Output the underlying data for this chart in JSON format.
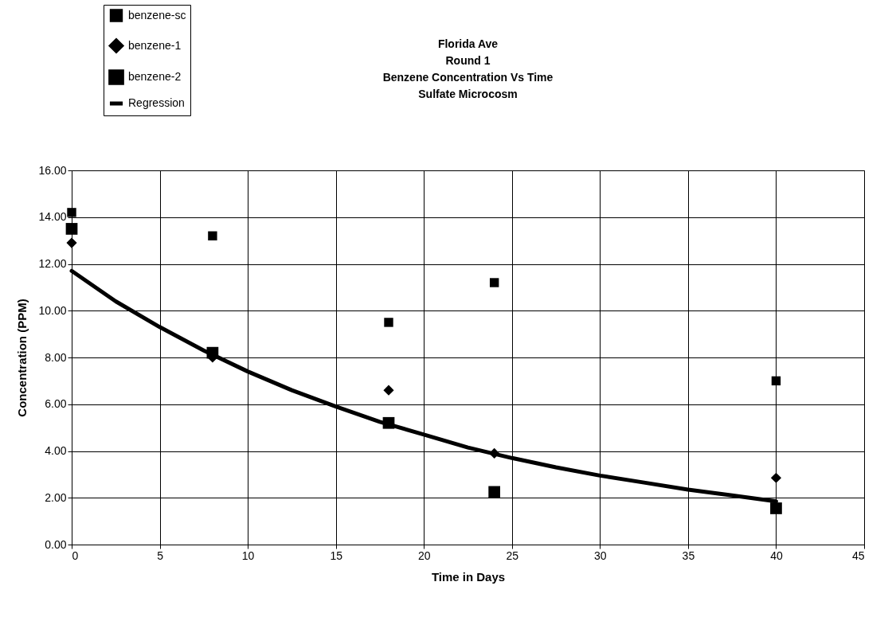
{
  "chart_data": {
    "type": "scatter",
    "title": "Florida Ave\nRound 1\nBenzene Concentration Vs Time\nSulfate Microcosm",
    "xlabel": "Time in Days",
    "ylabel": "Concentration (PPM)",
    "xlim": [
      0,
      45
    ],
    "xticks": [
      0,
      5,
      10,
      15,
      20,
      25,
      30,
      35,
      40,
      45
    ],
    "ylim": [
      0,
      16
    ],
    "yticks": [
      {
        "value": 0,
        "label": "0.00"
      },
      {
        "value": 2,
        "label": "2.00"
      },
      {
        "value": 4,
        "label": "4.00"
      },
      {
        "value": 6,
        "label": "6.00"
      },
      {
        "value": 8,
        "label": "8.00"
      },
      {
        "value": 10,
        "label": "10.00"
      },
      {
        "value": 12,
        "label": "12.00"
      },
      {
        "value": 14,
        "label": "14.00"
      },
      {
        "value": 16,
        "label": "16.00"
      }
    ],
    "grid": true,
    "legend": "top left",
    "series": [
      {
        "name": "benzene-sc",
        "color": "#000000",
        "marker": "square",
        "x": [
          0,
          8,
          18,
          24,
          40
        ],
        "values": [
          14.2,
          13.2,
          9.5,
          11.2,
          7.0
        ]
      },
      {
        "name": "benzene-1",
        "color": "#000000",
        "marker": "diamond",
        "x": [
          0,
          8,
          18,
          24,
          40
        ],
        "values": [
          12.9,
          8.0,
          6.6,
          3.9,
          2.85
        ]
      },
      {
        "name": "benzene-2",
        "color": "#000000",
        "marker": "square",
        "x": [
          0,
          8,
          18,
          24,
          40
        ],
        "values": [
          13.5,
          8.2,
          5.2,
          2.25,
          1.55
        ]
      },
      {
        "name": "Regression",
        "color": "#000000",
        "type": "line",
        "marker": "none",
        "line_style": "solid",
        "x": [
          0,
          2.5,
          5,
          7.5,
          10,
          12.5,
          15,
          17.5,
          20,
          22.5,
          25,
          27.5,
          30,
          32.5,
          35,
          37.5,
          40
        ],
        "values": [
          11.7,
          10.4,
          9.3,
          8.3,
          7.4,
          6.6,
          5.9,
          5.25,
          4.7,
          4.15,
          3.7,
          3.3,
          2.95,
          2.65,
          2.35,
          2.1,
          1.85
        ]
      }
    ]
  }
}
